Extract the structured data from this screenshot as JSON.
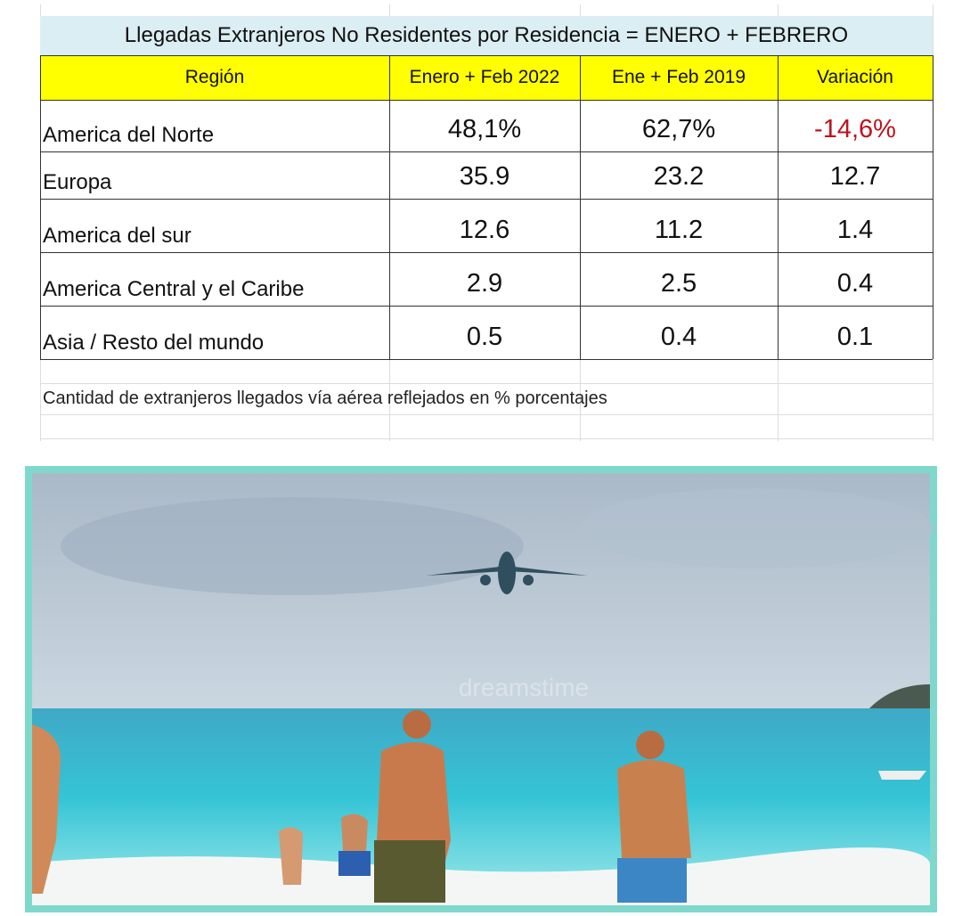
{
  "table": {
    "title": "Llegadas Extranjeros No Residentes por Residencia = ENERO + FEBRERO",
    "header": [
      "Región",
      "Enero + Feb 2022",
      "Ene + Feb 2019",
      "Variación"
    ],
    "rows": [
      [
        "America del Norte",
        "48,1%",
        "62,7%",
        "-14,6%"
      ],
      [
        "Europa",
        "35.9",
        "23.2",
        "12.7"
      ],
      [
        "America del sur",
        "12.6",
        "11.2",
        "1.4"
      ],
      [
        "America Central y el Caribe",
        "2.9",
        "2.5",
        "0.4"
      ],
      [
        "Asia / Resto del mundo",
        "0.5",
        "0.4",
        "0.1"
      ]
    ],
    "note": "Cantidad de extranjeros llegados vía aérea reflejados en % porcentajes"
  },
  "photo": {
    "watermark": "dreamstime"
  }
}
